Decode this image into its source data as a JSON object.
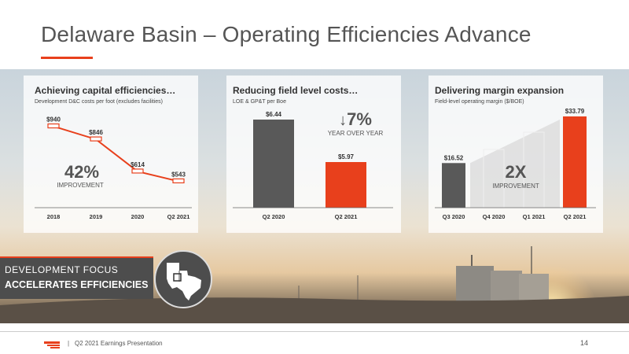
{
  "slide": {
    "title": "Delaware Basin – Operating Efficiencies Advance",
    "accent_color": "#e8401c",
    "gray_color": "#595959",
    "focus_line1": "DEVELOPMENT FOCUS",
    "focus_line2": "ACCELERATES EFFICIENCIES",
    "map_icon": "texas-new-mexico-map-icon",
    "footer_text": "Q2 2021 Earnings Presentation",
    "footer_sep": "|",
    "page_number": "14"
  },
  "callouts": {
    "c1_big": "42%",
    "c1_sub": "IMPROVEMENT",
    "c2_big": "7%",
    "c2_arrow": "↓",
    "c2_sub": "YEAR OVER YEAR",
    "c3_big": "2X",
    "c3_sub": "IMPROVEMENT"
  },
  "chart_data": [
    {
      "type": "line",
      "title": "Achieving capital efficiencies…",
      "subtitle": "Development D&C costs per foot (excludes facilities)",
      "categories": [
        "2018",
        "2019",
        "2020",
        "Q2 2021"
      ],
      "values": [
        940,
        846,
        614,
        543
      ],
      "labels": [
        "$940",
        "$846",
        "$614",
        "$543"
      ],
      "ylim": [
        500,
        1000
      ],
      "color": "#e8401c"
    },
    {
      "type": "bar",
      "title": "Reducing field level costs…",
      "subtitle": "LOE & GP&T per Boe",
      "categories": [
        "Q2 2020",
        "Q2 2021"
      ],
      "values": [
        6.44,
        5.97
      ],
      "labels": [
        "$6.44",
        "$5.97"
      ],
      "colors": [
        "#595959",
        "#e8401c"
      ],
      "ylim": [
        0,
        6.44
      ]
    },
    {
      "type": "bar",
      "title": "Delivering margin expansion",
      "subtitle": "Field-level operating margin ($/BOE)",
      "categories": [
        "Q3 2020",
        "Q4 2020",
        "Q1 2021",
        "Q2 2021"
      ],
      "values": [
        16.52,
        null,
        null,
        33.79
      ],
      "labels": [
        "$16.52",
        "",
        "",
        "$33.79"
      ],
      "colors": [
        "#595959",
        "#ffffff",
        "#ffffff",
        "#e8401c"
      ],
      "ylim": [
        0,
        33.79
      ]
    }
  ]
}
